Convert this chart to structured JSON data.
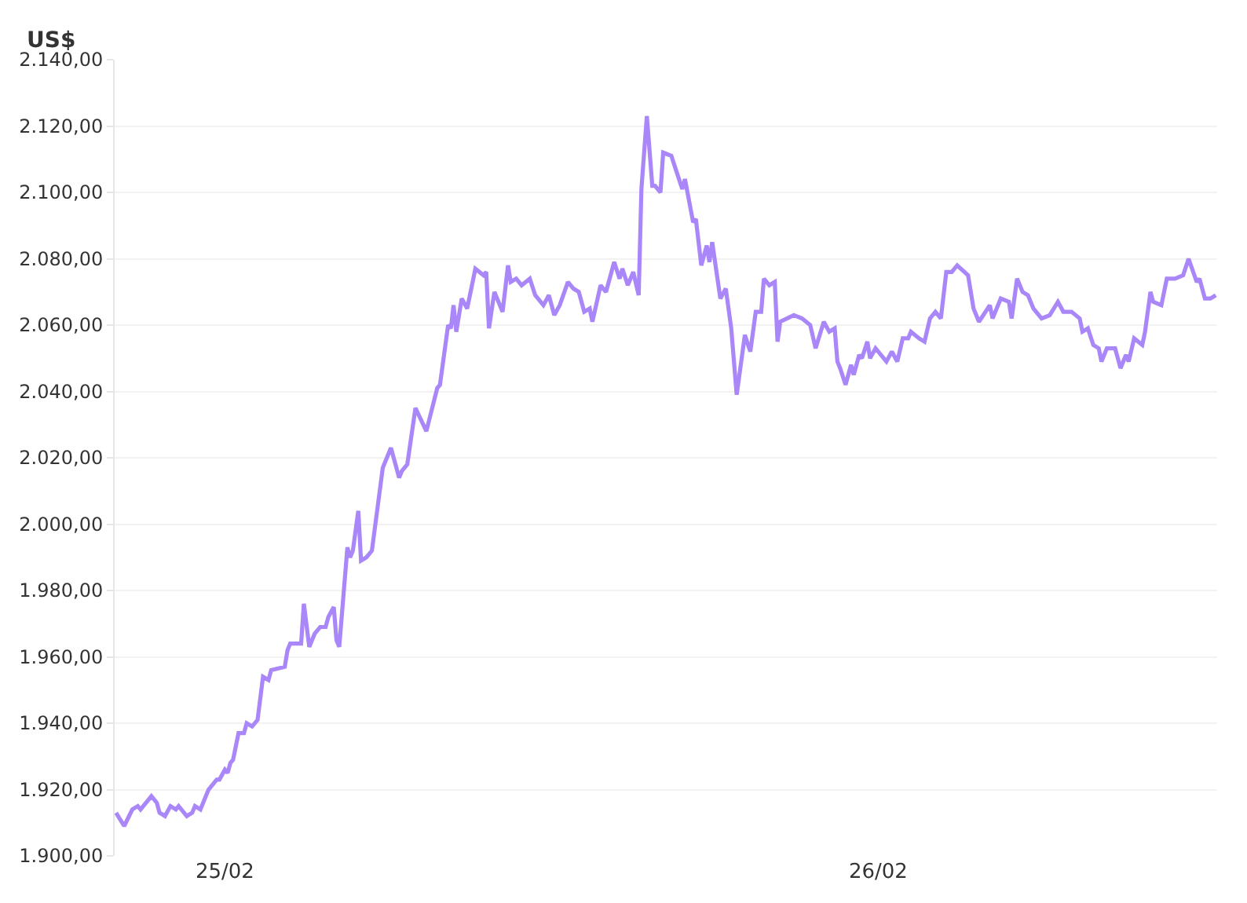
{
  "chart_data": {
    "type": "line",
    "ylabel": "US$",
    "x": [
      "--02-24T20:00",
      "--02-24T20:18",
      "--02-24T20:36",
      "--02-24T20:48",
      "--02-24T20:54",
      "--02-24T21:18",
      "--02-24T21:30",
      "--02-24T21:36",
      "--02-24T21:48",
      "--02-24T22:00",
      "--02-24T22:12",
      "--02-24T22:18",
      "--02-24T22:30",
      "--02-24T22:36",
      "--02-24T22:48",
      "--02-24T22:54",
      "--02-24T23:06",
      "--02-24T23:24",
      "--02-24T23:42",
      "--02-24T23:48",
      "--02-25T00:00",
      "--02-25T00:06",
      "--02-25T00:12",
      "--02-25T00:18",
      "--02-25T00:30",
      "--02-25T00:42",
      "--02-25T00:48",
      "--02-25T01:00",
      "--02-25T01:12",
      "--02-25T01:24",
      "--02-25T01:36",
      "--02-25T01:42",
      "--02-25T02:12",
      "--02-25T02:18",
      "--02-25T02:24",
      "--02-25T02:36",
      "--02-25T02:48",
      "--02-25T02:54",
      "--02-25T03:06",
      "--02-25T03:18",
      "--02-25T03:30",
      "--02-25T03:42",
      "--02-25T03:48",
      "--02-25T04:00",
      "--02-25T04:06",
      "--02-25T04:12",
      "--02-25T04:30",
      "--02-25T04:36",
      "--02-25T04:42",
      "--02-25T04:54",
      "--02-25T05:00",
      "--02-25T05:12",
      "--02-25T05:24",
      "--02-25T05:48",
      "--02-25T06:06",
      "--02-25T06:24",
      "--02-25T06:30",
      "--02-25T06:42",
      "--02-25T07:00",
      "--02-25T07:24",
      "--02-25T07:48",
      "--02-25T07:54",
      "--02-25T08:12",
      "--02-25T08:18",
      "--02-25T08:24",
      "--02-25T08:30",
      "--02-25T08:42",
      "--02-25T08:54",
      "--02-25T09:12",
      "--02-25T09:30",
      "--02-25T09:36",
      "--02-25T09:42",
      "--02-25T09:54",
      "--02-25T10:12",
      "--02-25T10:24",
      "--02-25T10:30",
      "--02-25T10:42",
      "--02-25T10:54",
      "--02-25T11:12",
      "--02-25T11:24",
      "--02-25T11:42",
      "--02-25T11:54",
      "--02-25T12:06",
      "--02-25T12:18",
      "--02-25T12:36",
      "--02-25T12:48",
      "--02-25T13:00",
      "--02-25T13:12",
      "--02-25T13:24",
      "--02-25T13:30",
      "--02-25T13:48",
      "--02-25T14:00",
      "--02-25T14:18",
      "--02-25T14:30",
      "--02-25T14:36",
      "--02-25T14:48",
      "--02-25T15:00",
      "--02-25T15:12",
      "--02-25T15:18",
      "--02-25T15:30",
      "--02-25T15:42",
      "--02-25T15:48",
      "--02-25T16:00",
      "--02-25T16:06",
      "--02-25T16:24",
      "--02-25T16:36",
      "--02-25T16:48",
      "--02-25T16:54",
      "--02-25T17:12",
      "--02-25T17:18",
      "--02-25T17:30",
      "--02-25T17:42",
      "--02-25T17:48",
      "--02-25T17:54",
      "--02-25T18:12",
      "--02-25T18:24",
      "--02-25T18:36",
      "--02-25T18:48",
      "--02-25T19:06",
      "--02-25T19:18",
      "--02-25T19:30",
      "--02-25T19:42",
      "--02-25T19:48",
      "--02-25T20:00",
      "--02-25T20:12",
      "--02-25T20:18",
      "--02-25T20:24",
      "--02-25T20:54",
      "--02-25T21:12",
      "--02-25T21:30",
      "--02-25T21:42",
      "--02-25T22:00",
      "--02-25T22:12",
      "--02-25T22:24",
      "--02-25T22:30",
      "--02-25T22:36",
      "--02-25T22:48",
      "--02-25T23:00",
      "--02-25T23:06",
      "--02-25T23:18",
      "--02-25T23:24",
      "--02-25T23:36",
      "--02-25T23:42",
      "--02-25T23:54",
      "--02-26T00:18",
      "--02-26T00:30",
      "--02-26T00:42",
      "--02-26T00:54",
      "--02-26T01:06",
      "--02-26T01:12",
      "--02-26T01:30",
      "--02-26T01:42",
      "--02-26T01:54",
      "--02-26T02:06",
      "--02-26T02:18",
      "--02-26T02:30",
      "--02-26T02:42",
      "--02-26T02:54",
      "--02-26T03:18",
      "--02-26T03:30",
      "--02-26T03:42",
      "--02-26T04:06",
      "--02-26T04:12",
      "--02-26T04:30",
      "--02-26T04:48",
      "--02-26T04:54",
      "--02-26T05:06",
      "--02-26T05:18",
      "--02-26T05:30",
      "--02-26T05:42",
      "--02-26T06:00",
      "--02-26T06:18",
      "--02-26T06:36",
      "--02-26T06:48",
      "--02-26T07:06",
      "--02-26T07:24",
      "--02-26T07:30",
      "--02-26T07:42",
      "--02-26T07:54",
      "--02-26T08:06",
      "--02-26T08:12",
      "--02-26T08:24",
      "--02-26T08:42",
      "--02-26T08:54",
      "--02-26T09:06",
      "--02-26T09:12",
      "--02-26T09:24",
      "--02-26T09:42",
      "--02-26T09:48",
      "--02-26T10:00",
      "--02-26T10:06",
      "--02-26T10:24",
      "--02-26T10:36",
      "--02-26T10:54",
      "--02-26T11:12",
      "--02-26T11:24",
      "--02-26T11:42",
      "--02-26T11:48",
      "--02-26T12:00",
      "--02-26T12:12",
      "--02-26T12:24"
    ],
    "series": [
      {
        "color": "#a987f8",
        "values": [
          1913,
          1909,
          1914,
          1915,
          1914,
          1918,
          1916,
          1913,
          1912,
          1915,
          1914,
          1915,
          1913,
          1912,
          1913,
          1915,
          1914,
          1920,
          1923,
          1923,
          1926,
          1925,
          1928,
          1929,
          1937,
          1937,
          1940,
          1939,
          1941,
          1954,
          1953,
          1956,
          1957,
          1962,
          1964,
          1964,
          1964,
          1976,
          1963,
          1967,
          1969,
          1969,
          1972,
          1975,
          1965,
          1963,
          1993,
          1990,
          1992,
          2004,
          1989,
          1990,
          1992,
          2017,
          2023,
          2014,
          2016,
          2018,
          2035,
          2028,
          2041,
          2042,
          2060,
          2059,
          2066,
          2058,
          2068,
          2065,
          2077,
          2075,
          2076,
          2059,
          2070,
          2064,
          2078,
          2073,
          2074,
          2072,
          2074,
          2069,
          2066,
          2069,
          2063,
          2066,
          2073,
          2071,
          2070,
          2064,
          2065,
          2061,
          2072,
          2070,
          2079,
          2074,
          2077,
          2072,
          2076,
          2069,
          2101,
          2123,
          2102,
          2102,
          2100,
          2112,
          2111,
          2106,
          2101,
          2104,
          2091,
          2092,
          2078,
          2084,
          2079,
          2085,
          2068,
          2071,
          2059,
          2039,
          2057,
          2052,
          2064,
          2064,
          2074,
          2072,
          2073,
          2055,
          2061,
          2063,
          2062,
          2060,
          2053,
          2061,
          2058,
          2059,
          2049,
          2047,
          2042,
          2048,
          2045,
          2051,
          2050,
          2055,
          2050,
          2053,
          2049,
          2052,
          2049,
          2056,
          2056,
          2058,
          2056,
          2055,
          2062,
          2064,
          2062,
          2076,
          2076,
          2078,
          2075,
          2065,
          2061,
          2066,
          2062,
          2068,
          2067,
          2062,
          2074,
          2070,
          2069,
          2065,
          2062,
          2063,
          2067,
          2064,
          2064,
          2062,
          2058,
          2059,
          2054,
          2053,
          2049,
          2053,
          2053,
          2047,
          2051,
          2049,
          2056,
          2054,
          2058,
          2070,
          2067,
          2066,
          2074,
          2074,
          2075,
          2080,
          2073,
          2074,
          2068,
          2068,
          2069
        ]
      }
    ],
    "xlim": [
      "--02-24T19:57",
      "--02-26T12:27"
    ],
    "xticks": [
      {
        "value": "--02-25",
        "label": "25/02"
      },
      {
        "value": "--02-26",
        "label": "26/02"
      }
    ],
    "ylim": [
      1900,
      2140
    ],
    "yticks": [
      {
        "value": 1900,
        "label": "1.900,00"
      },
      {
        "value": 1920,
        "label": "1.920,00"
      },
      {
        "value": 1940,
        "label": "1.940,00"
      },
      {
        "value": 1960,
        "label": "1.960,00"
      },
      {
        "value": 1980,
        "label": "1.980,00"
      },
      {
        "value": 2000,
        "label": "2.000,00"
      },
      {
        "value": 2020,
        "label": "2.020,00"
      },
      {
        "value": 2040,
        "label": "2.040,00"
      },
      {
        "value": 2060,
        "label": "2.060,00"
      },
      {
        "value": 2080,
        "label": "2.080,00"
      },
      {
        "value": 2100,
        "label": "2.100,00"
      },
      {
        "value": 2120,
        "label": "2.120,00"
      },
      {
        "value": 2140,
        "label": "2.140,00"
      }
    ],
    "grid": "y",
    "marker": "none",
    "line_style": "solid"
  }
}
